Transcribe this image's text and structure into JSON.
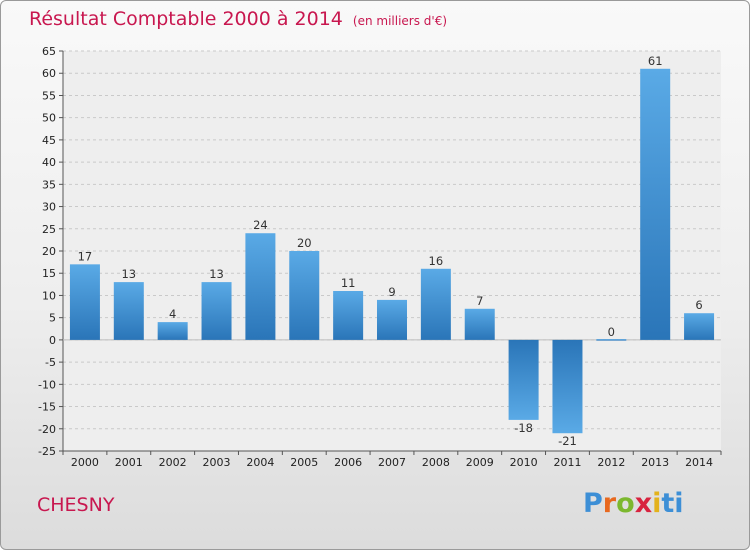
{
  "title": "Résultat Comptable 2000 à 2014",
  "title_unit": "(en milliers d'€)",
  "commune": "CHESNY",
  "brand": {
    "p": "P",
    "r": "r",
    "o": "o",
    "x": "x",
    "i": "i",
    "t": "ti"
  },
  "colors": {
    "accent": "#c8174f",
    "bar": "#3f8fd2",
    "bar_light": "#5aaae6",
    "bar_dark": "#2a75b8"
  },
  "chart_data": {
    "type": "bar",
    "title": "Résultat Comptable 2000 à 2014",
    "xlabel": "",
    "ylabel": "",
    "ylim": [
      -25,
      65
    ],
    "yticks": [
      65,
      60,
      55,
      50,
      45,
      40,
      35,
      30,
      25,
      20,
      15,
      10,
      5,
      0,
      -5,
      -10,
      -15,
      -20,
      -25
    ],
    "grid": true,
    "categories": [
      "2000",
      "2001",
      "2002",
      "2003",
      "2004",
      "2005",
      "2006",
      "2007",
      "2008",
      "2009",
      "2010",
      "2011",
      "2012",
      "2013",
      "2014"
    ],
    "values": [
      17,
      13,
      4,
      13,
      24,
      20,
      11,
      9,
      16,
      7,
      -18,
      -21,
      0,
      61,
      6
    ],
    "labels": [
      "17",
      "13",
      "4",
      "13",
      "24",
      "20",
      "11",
      "9",
      "16",
      "7",
      "-18",
      "-21",
      "0",
      "61",
      "6"
    ]
  }
}
